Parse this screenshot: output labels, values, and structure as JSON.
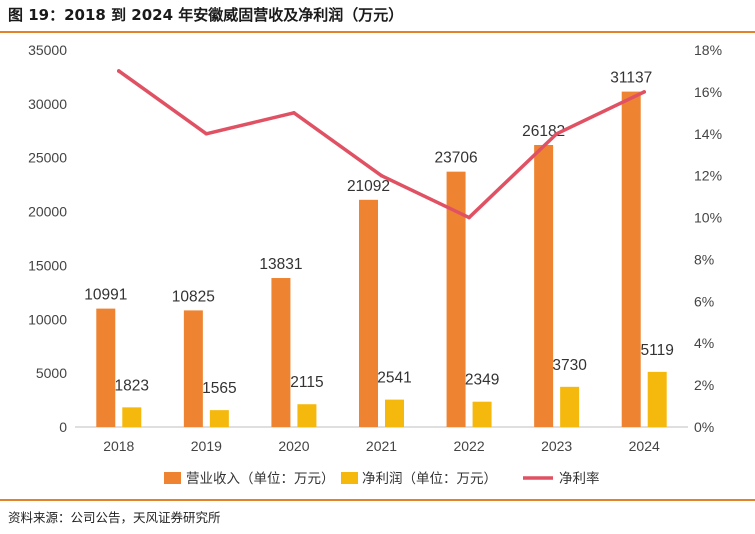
{
  "title": "图 19：2018 到 2024 年安徽威固营收及净利润（万元）",
  "source": "资料来源：公司公告，天风证券研究所",
  "colors": {
    "revenue": "#ee8431",
    "net_profit": "#f5b90e",
    "net_margin": "#e05263",
    "accent_rule": "#e2822a"
  },
  "chart_data": {
    "type": "bar",
    "categories": [
      "2018",
      "2019",
      "2020",
      "2021",
      "2022",
      "2023",
      "2024"
    ],
    "series": [
      {
        "name": "营业收入（单位：万元）",
        "type": "bar",
        "axis": "left",
        "values": [
          10991,
          10825,
          13831,
          21092,
          23706,
          26182,
          31137
        ],
        "labels": [
          "10991",
          "10825",
          "13831",
          "21092",
          "23706",
          "26182",
          "31137"
        ]
      },
      {
        "name": "净利润（单位：万元）",
        "type": "bar",
        "axis": "left",
        "values": [
          1823,
          1565,
          2115,
          2541,
          2349,
          3730,
          5119
        ],
        "labels": [
          "1823",
          "1565",
          "2115",
          "2541",
          "2349",
          "3730",
          "5119"
        ]
      },
      {
        "name": "净利率",
        "type": "line",
        "axis": "right",
        "values": [
          0.17,
          0.14,
          0.15,
          0.12,
          0.1,
          0.14,
          0.16
        ]
      }
    ],
    "y_left": {
      "ylim": [
        0,
        35000
      ],
      "ticks": [
        "0",
        "5000",
        "10000",
        "15000",
        "20000",
        "25000",
        "30000",
        "35000"
      ]
    },
    "y_right": {
      "ylim": [
        0,
        0.18
      ],
      "ticks": [
        "0%",
        "2%",
        "4%",
        "6%",
        "8%",
        "10%",
        "12%",
        "14%",
        "16%",
        "18%"
      ]
    },
    "grid": false,
    "legend_position": "bottom"
  }
}
